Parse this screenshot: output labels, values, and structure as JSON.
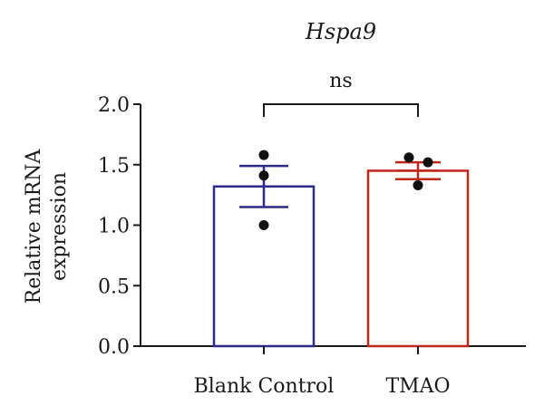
{
  "chart_data": {
    "type": "bar",
    "title": "Hspa9",
    "ylabel_lines": [
      "Relative mRNA",
      "expression"
    ],
    "xlabel": "",
    "ylim": [
      0,
      2.0
    ],
    "yticks": [
      0.0,
      0.5,
      1.0,
      1.5,
      2.0
    ],
    "ytick_labels": [
      "0.0",
      "0.5",
      "1.0",
      "1.5",
      "2.0"
    ],
    "categories": [
      "Blank Control",
      "TMAO"
    ],
    "values": [
      1.32,
      1.45
    ],
    "errors": [
      0.17,
      0.07
    ],
    "points": [
      [
        1.58,
        1.41,
        1.0
      ],
      [
        1.56,
        1.52,
        1.33
      ]
    ],
    "colors": [
      "#2e2a8a",
      "#c0281e"
    ],
    "significance": {
      "label": "ns",
      "between": [
        0,
        1
      ]
    },
    "grid": false,
    "legend": "none"
  }
}
